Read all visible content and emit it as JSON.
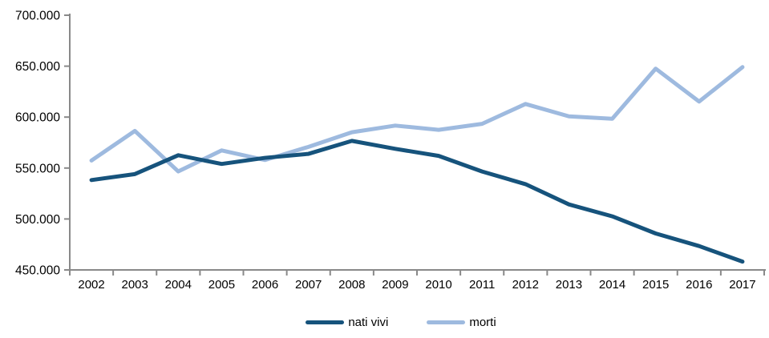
{
  "chart_data": {
    "type": "line",
    "x": [
      2002,
      2003,
      2004,
      2005,
      2006,
      2007,
      2008,
      2009,
      2010,
      2011,
      2012,
      2013,
      2014,
      2015,
      2016,
      2017
    ],
    "series": [
      {
        "name": "nati vivi",
        "color": "#16537C",
        "values": [
          538198,
          544063,
          562599,
          554022,
          560010,
          563933,
          576659,
          568857,
          561944,
          546585,
          534186,
          514308,
          502596,
          485780,
          473438,
          458151
        ]
      },
      {
        "name": "morti",
        "color": "#9EBADF",
        "values": [
          557393,
          586468,
          546658,
          567304,
          557892,
          570801,
          585126,
          591663,
          587488,
          593402,
          612883,
          600744,
          598364,
          647571,
          615261,
          649061
        ]
      }
    ],
    "ylim": [
      450000,
      700000
    ],
    "ytick_step": 50000,
    "ytick_labels": [
      "450.000",
      "500.000",
      "550.000",
      "600.000",
      "650.000",
      "700.000"
    ],
    "grid": false,
    "legend_position": "bottom-center",
    "axis_color": "#898989",
    "text_color": "#000000"
  }
}
